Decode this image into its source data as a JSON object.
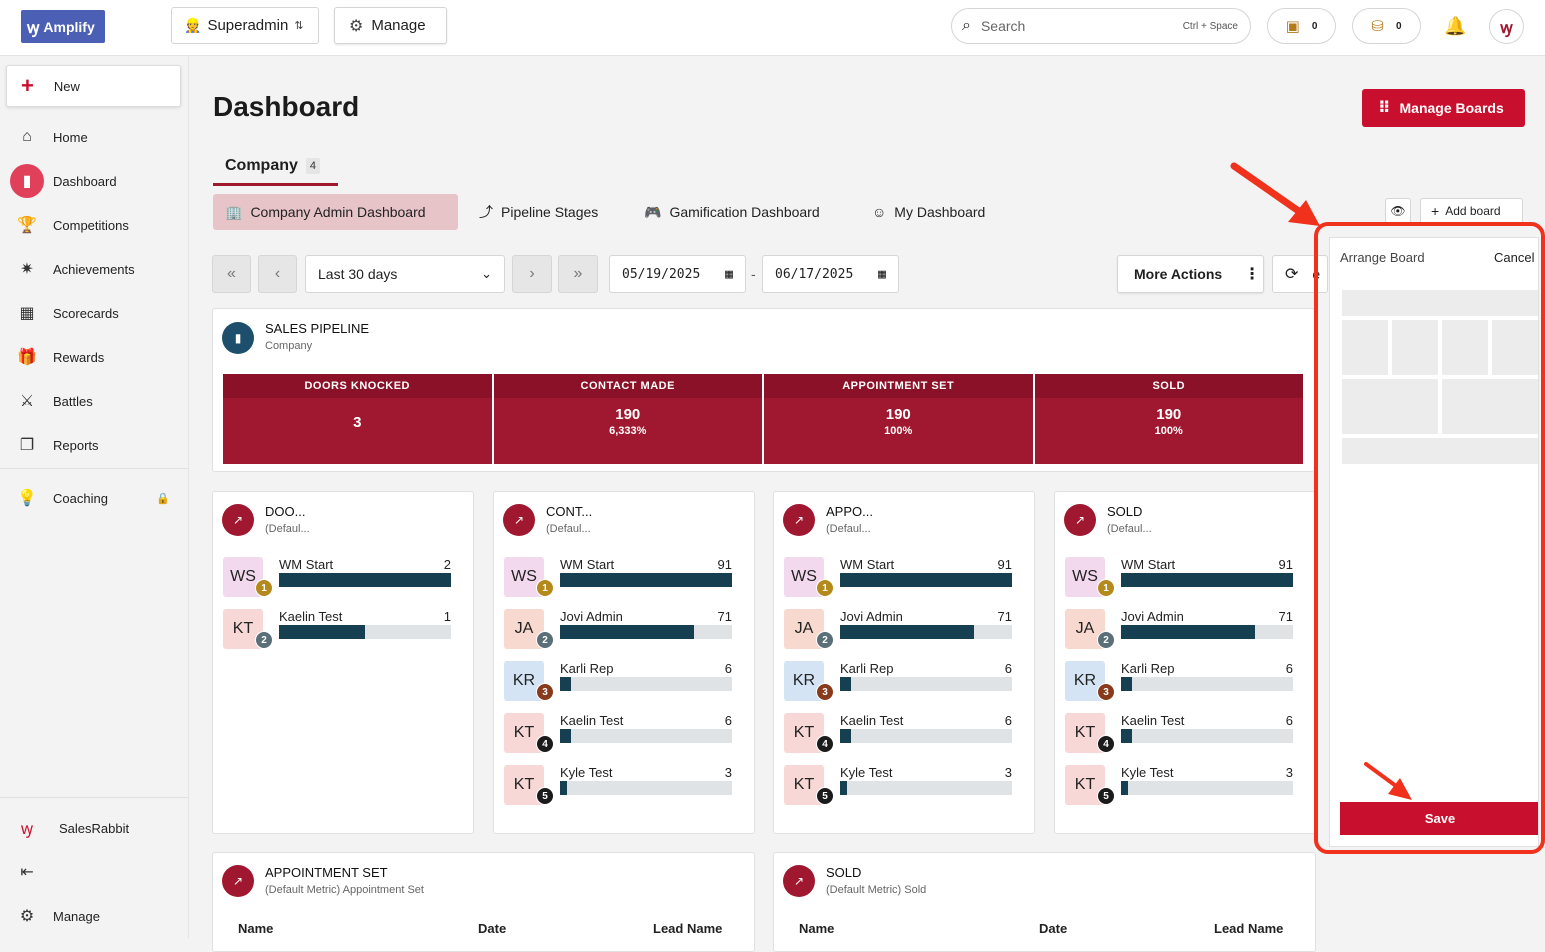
{
  "topbar": {
    "logo_text": "Amplify",
    "role_label": "Superadmin",
    "manage_label": "Manage",
    "search_placeholder": "Search",
    "search_shortcut": "Ctrl + Space",
    "wallet_count": "0",
    "coins_count": "0"
  },
  "sidebar": {
    "new_label": "New",
    "items": [
      {
        "label": "Home",
        "icon": "home-icon"
      },
      {
        "label": "Dashboard",
        "icon": "chart-icon"
      },
      {
        "label": "Competitions",
        "icon": "trophy-icon"
      },
      {
        "label": "Achievements",
        "icon": "party-icon"
      },
      {
        "label": "Scorecards",
        "icon": "scorecard-icon"
      },
      {
        "label": "Rewards",
        "icon": "gift-icon"
      },
      {
        "label": "Battles",
        "icon": "swords-icon"
      },
      {
        "label": "Reports",
        "icon": "report-icon"
      },
      {
        "label": "Coaching",
        "icon": "bulb-icon"
      }
    ],
    "footer": {
      "brand_label": "SalesRabbit",
      "manage_label": "Manage"
    }
  },
  "main": {
    "title": "Dashboard",
    "manage_boards_label": "Manage Boards",
    "company_tab": {
      "label": "Company",
      "count": "4"
    },
    "sub_tabs": [
      {
        "label": "Company Admin Dashboard",
        "icon": "building-icon"
      },
      {
        "label": "Pipeline Stages",
        "icon": "pipeline-icon"
      },
      {
        "label": "Gamification Dashboard",
        "icon": "gamepad-icon"
      },
      {
        "label": "My Dashboard",
        "icon": "smile-icon"
      }
    ],
    "add_board_label": "Add board",
    "date_range": {
      "preset": "Last 30 days",
      "start": "05/19/2025",
      "end": "06/17/2025",
      "separator": "-"
    },
    "more_actions_label": "More Actions",
    "refresh_label_fragment": "e"
  },
  "pipeline": {
    "title": "SALES PIPELINE",
    "subtitle": "Company",
    "stages": [
      {
        "name": "DOORS KNOCKED",
        "value": "3",
        "pct": ""
      },
      {
        "name": "CONTACT MADE",
        "value": "190",
        "pct": "6,333%"
      },
      {
        "name": "APPOINTMENT SET",
        "value": "190",
        "pct": "100%"
      },
      {
        "name": "SOLD",
        "value": "190",
        "pct": "100%"
      }
    ]
  },
  "leaderboards": [
    {
      "title": "DOO...",
      "subtitle": "(Defaul...",
      "rows": [
        {
          "initials": "WS",
          "rank": "1",
          "name": "WM Start",
          "score": "2",
          "fill": 1.0
        },
        {
          "initials": "KT",
          "rank": "2",
          "name": "Kaelin Test",
          "score": "1",
          "fill": 0.5
        }
      ]
    },
    {
      "title": "CONT...",
      "subtitle": "(Defaul...",
      "rows": [
        {
          "initials": "WS",
          "rank": "1",
          "name": "WM Start",
          "score": "91",
          "fill": 1.0
        },
        {
          "initials": "JA",
          "rank": "2",
          "name": "Jovi Admin",
          "score": "71",
          "fill": 0.78
        },
        {
          "initials": "KR",
          "rank": "3",
          "name": "Karli Rep",
          "score": "6",
          "fill": 0.066
        },
        {
          "initials": "KT",
          "rank": "4",
          "name": "Kaelin Test",
          "score": "6",
          "fill": 0.066
        },
        {
          "initials": "KT",
          "rank": "5",
          "name": "Kyle Test",
          "score": "3",
          "fill": 0.033
        }
      ]
    },
    {
      "title": "APPO...",
      "subtitle": "(Defaul...",
      "rows": [
        {
          "initials": "WS",
          "rank": "1",
          "name": "WM Start",
          "score": "91",
          "fill": 1.0
        },
        {
          "initials": "JA",
          "rank": "2",
          "name": "Jovi Admin",
          "score": "71",
          "fill": 0.78
        },
        {
          "initials": "KR",
          "rank": "3",
          "name": "Karli Rep",
          "score": "6",
          "fill": 0.066
        },
        {
          "initials": "KT",
          "rank": "4",
          "name": "Kaelin Test",
          "score": "6",
          "fill": 0.066
        },
        {
          "initials": "KT",
          "rank": "5",
          "name": "Kyle Test",
          "score": "3",
          "fill": 0.033
        }
      ]
    },
    {
      "title": "SOLD",
      "subtitle": "(Defaul...",
      "rows": [
        {
          "initials": "WS",
          "rank": "1",
          "name": "WM Start",
          "score": "91",
          "fill": 1.0
        },
        {
          "initials": "JA",
          "rank": "2",
          "name": "Jovi Admin",
          "score": "71",
          "fill": 0.78
        },
        {
          "initials": "KR",
          "rank": "3",
          "name": "Karli Rep",
          "score": "6",
          "fill": 0.066
        },
        {
          "initials": "KT",
          "rank": "4",
          "name": "Kaelin Test",
          "score": "6",
          "fill": 0.066
        },
        {
          "initials": "KT",
          "rank": "5",
          "name": "Kyle Test",
          "score": "3",
          "fill": 0.033
        }
      ]
    }
  ],
  "tables": [
    {
      "title": "APPOINTMENT SET",
      "subtitle": "(Default Metric) Appointment Set",
      "columns": [
        "Name",
        "Date",
        "Lead Name"
      ]
    },
    {
      "title": "SOLD",
      "subtitle": "(Default Metric) Sold",
      "columns": [
        "Name",
        "Date",
        "Lead Name"
      ]
    }
  ],
  "arrange_panel": {
    "title": "Arrange Board",
    "cancel_label": "Cancel",
    "save_label": "Save"
  },
  "colors": {
    "brand_red": "#c8102e",
    "funnel_red": "#a0182f",
    "bar_fill": "#163f52",
    "annotation_red": "#f0311c"
  }
}
